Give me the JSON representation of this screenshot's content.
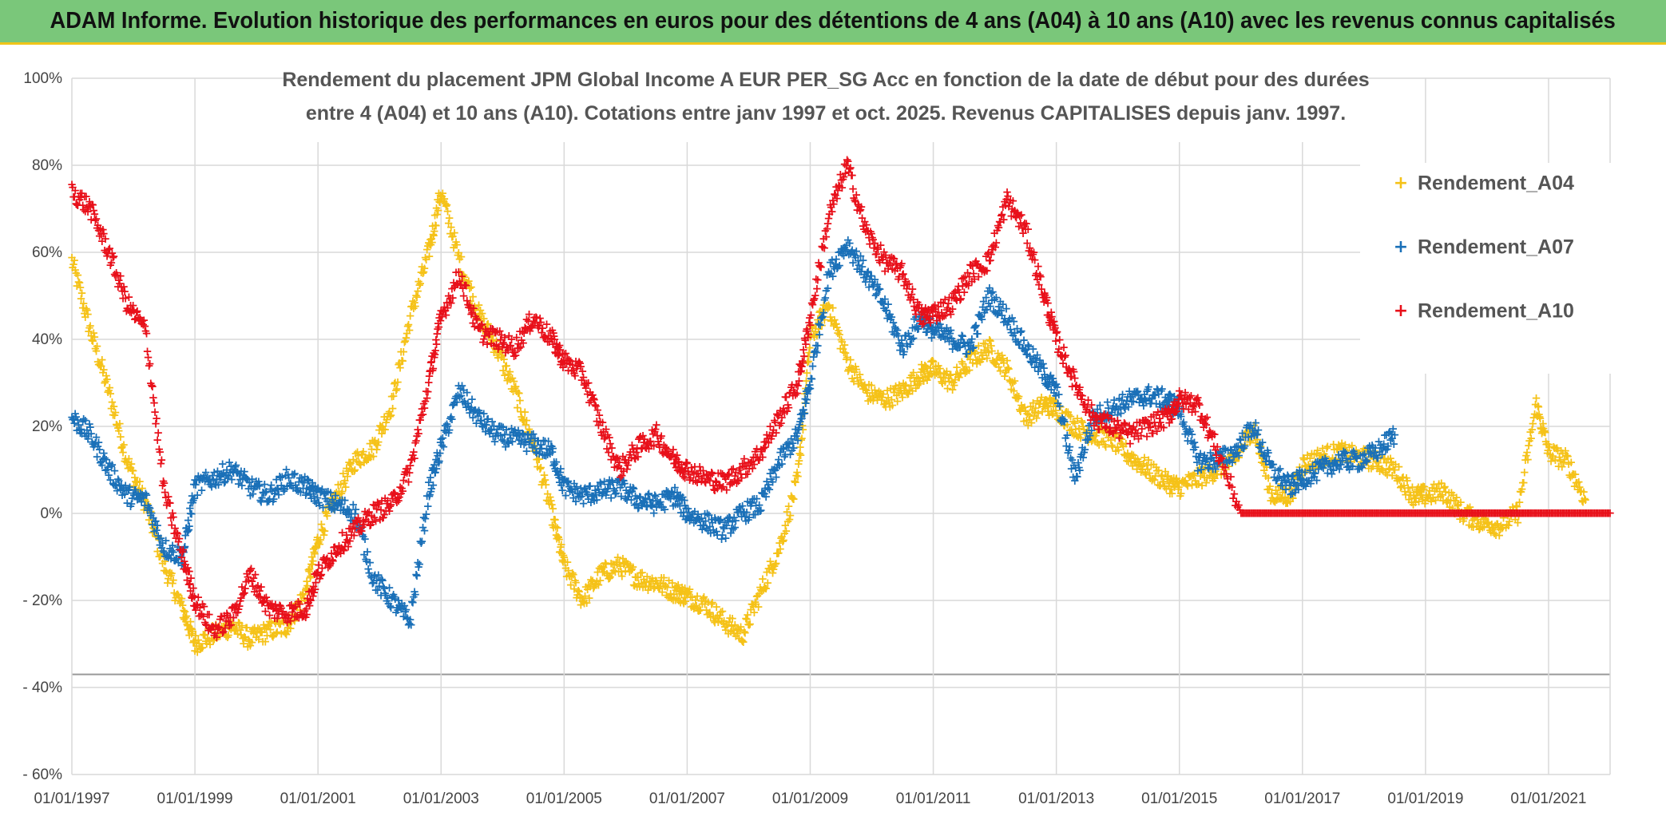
{
  "banner": {
    "title": "ADAM Informe. Evolution historique des performances en euros pour des détentions de 4 ans (A04) à 10 ans (A10) avec les revenus connus capitalisés"
  },
  "chart_data": {
    "type": "scatter",
    "title_line1": "Rendement du placement JPM Global Income A EUR PER_SG Acc en fonction de la date de début pour des durées",
    "title_line2": "entre 4 (A04) et 10 ans (A10). Cotations entre janv 1997 et oct. 2025. Revenus CAPITALISES depuis janv. 1997.",
    "xlabel": "",
    "ylabel": "",
    "xlim": [
      1997.0,
      2022.0
    ],
    "ylim": [
      -60,
      100
    ],
    "x_ticks": [
      1997,
      1999,
      2001,
      2003,
      2005,
      2007,
      2009,
      2011,
      2013,
      2015,
      2017,
      2019,
      2021
    ],
    "x_tick_labels": [
      "01/01/1997",
      "01/01/1999",
      "01/01/2001",
      "01/01/2003",
      "01/01/2005",
      "01/01/2007",
      "01/01/2009",
      "01/01/2011",
      "01/01/2013",
      "01/01/2015",
      "01/01/2017",
      "01/01/2019",
      "01/01/2021"
    ],
    "y_ticks": [
      100,
      80,
      60,
      40,
      20,
      0,
      -20,
      -40,
      -60
    ],
    "y_tick_labels": [
      "100%",
      "80%",
      "60%",
      "40%",
      "20%",
      "0%",
      "- 20%",
      "- 40%",
      "- 60%"
    ],
    "grid": true,
    "legend_position": "top-right",
    "marker": "+",
    "series": [
      {
        "name": "Rendement_A04",
        "color": "#f5c218",
        "x": [
          1997.0,
          1997.3,
          1997.6,
          1997.9,
          1998.2,
          1998.5,
          1998.8,
          1999.0,
          1999.3,
          1999.6,
          1999.9,
          2000.2,
          2000.5,
          2000.8,
          2001.0,
          2001.3,
          2001.6,
          2001.9,
          2002.2,
          2002.5,
          2002.8,
          2003.0,
          2003.3,
          2003.6,
          2003.9,
          2004.2,
          2004.5,
          2004.8,
          2005.0,
          2005.3,
          2005.6,
          2005.9,
          2006.2,
          2006.5,
          2006.8,
          2007.0,
          2007.3,
          2007.6,
          2007.9,
          2008.2,
          2008.5,
          2008.8,
          2009.0,
          2009.3,
          2009.6,
          2009.9,
          2010.2,
          2010.5,
          2010.8,
          2011.0,
          2011.3,
          2011.6,
          2011.9,
          2012.2,
          2012.5,
          2012.8,
          2013.0,
          2013.3,
          2013.6,
          2013.9,
          2014.2,
          2014.5,
          2014.8,
          2015.0,
          2015.3,
          2015.6,
          2015.9,
          2016.2,
          2016.5,
          2016.8,
          2017.0,
          2017.3,
          2017.6,
          2017.9,
          2018.2,
          2018.5,
          2018.8,
          2019.0,
          2019.3,
          2019.6,
          2019.9,
          2020.2,
          2020.5,
          2020.8,
          2021.0,
          2021.3,
          2021.6
        ],
        "y": [
          58,
          42,
          28,
          12,
          2,
          -12,
          -22,
          -30,
          -28,
          -26,
          -29,
          -27,
          -26,
          -18,
          -6,
          4,
          12,
          15,
          25,
          45,
          60,
          74,
          58,
          46,
          38,
          28,
          16,
          0,
          -12,
          -20,
          -14,
          -12,
          -15,
          -16,
          -18,
          -19,
          -21,
          -25,
          -28,
          -18,
          -8,
          8,
          40,
          48,
          35,
          28,
          26,
          28,
          32,
          33,
          30,
          35,
          38,
          33,
          22,
          25,
          24,
          20,
          18,
          17,
          13,
          10,
          7,
          6,
          8,
          10,
          12,
          20,
          4,
          4,
          11,
          13,
          14,
          13,
          12,
          10,
          4,
          4,
          5,
          0,
          -2,
          -3,
          0,
          25,
          14,
          12,
          3
        ]
      },
      {
        "name": "Rendement_A07",
        "color": "#1a70b8",
        "x": [
          1997.0,
          1997.3,
          1997.6,
          1997.9,
          1998.2,
          1998.5,
          1998.8,
          1999.0,
          1999.3,
          1999.6,
          1999.9,
          2000.2,
          2000.5,
          2000.8,
          2001.0,
          2001.3,
          2001.6,
          2001.9,
          2002.2,
          2002.5,
          2002.8,
          2003.0,
          2003.3,
          2003.6,
          2003.9,
          2004.2,
          2004.5,
          2004.8,
          2005.0,
          2005.3,
          2005.6,
          2005.9,
          2006.2,
          2006.5,
          2006.8,
          2007.0,
          2007.3,
          2007.6,
          2007.9,
          2008.2,
          2008.5,
          2008.8,
          2009.0,
          2009.3,
          2009.6,
          2009.9,
          2010.2,
          2010.5,
          2010.8,
          2011.0,
          2011.3,
          2011.6,
          2011.9,
          2012.2,
          2012.5,
          2012.8,
          2013.0,
          2013.3,
          2013.6,
          2013.9,
          2014.2,
          2014.5,
          2014.8,
          2015.0,
          2015.3,
          2015.6,
          2015.9,
          2016.2,
          2016.5,
          2016.8,
          2017.0,
          2017.3,
          2017.6,
          2017.9,
          2018.2,
          2018.5
        ],
        "y": [
          22,
          18,
          10,
          4,
          3,
          -8,
          -10,
          6,
          8,
          10,
          6,
          4,
          8,
          6,
          4,
          2,
          0,
          -15,
          -20,
          -25,
          5,
          15,
          28,
          22,
          18,
          17,
          16,
          14,
          6,
          4,
          5,
          6,
          3,
          2,
          4,
          0,
          -2,
          -4,
          0,
          2,
          12,
          18,
          30,
          55,
          62,
          55,
          48,
          38,
          45,
          42,
          40,
          38,
          50,
          45,
          38,
          32,
          28,
          8,
          22,
          24,
          26,
          27,
          26,
          24,
          12,
          12,
          14,
          20,
          10,
          6,
          8,
          10,
          12,
          12,
          14,
          18
        ]
      },
      {
        "name": "Rendement_A10",
        "color": "#e8101a",
        "x": [
          1997.0,
          1997.3,
          1997.6,
          1997.9,
          1998.2,
          1998.5,
          1998.8,
          1999.0,
          1999.3,
          1999.6,
          1999.9,
          2000.2,
          2000.5,
          2000.8,
          2001.0,
          2001.3,
          2001.6,
          2001.9,
          2002.2,
          2002.5,
          2002.8,
          2003.0,
          2003.3,
          2003.6,
          2003.9,
          2004.2,
          2004.5,
          2004.8,
          2005.0,
          2005.3,
          2005.6,
          2005.9,
          2006.2,
          2006.5,
          2006.8,
          2007.0,
          2007.3,
          2007.6,
          2007.9,
          2008.2,
          2008.5,
          2008.8,
          2009.0,
          2009.3,
          2009.6,
          2009.9,
          2010.2,
          2010.5,
          2010.8,
          2011.0,
          2011.3,
          2011.6,
          2011.9,
          2012.2,
          2012.5,
          2012.8,
          2013.0,
          2013.3,
          2013.6,
          2013.9,
          2014.2,
          2014.5,
          2014.8,
          2015.0,
          2015.3,
          2015.6,
          2016.0,
          2016.5,
          2017.0,
          2017.5,
          2018.0,
          2018.5,
          2019.0,
          2019.5,
          2020.0,
          2020.5,
          2021.0,
          2021.5,
          2022.0
        ],
        "y": [
          74,
          70,
          60,
          48,
          42,
          5,
          -10,
          -20,
          -27,
          -24,
          -14,
          -22,
          -23,
          -22,
          -14,
          -8,
          -4,
          0,
          2,
          10,
          30,
          45,
          55,
          42,
          40,
          38,
          45,
          40,
          35,
          32,
          20,
          10,
          15,
          18,
          12,
          10,
          8,
          7,
          10,
          14,
          22,
          30,
          45,
          68,
          80,
          65,
          58,
          55,
          45,
          46,
          48,
          55,
          58,
          72,
          65,
          50,
          40,
          30,
          22,
          20,
          18,
          20,
          22,
          26,
          25,
          15,
          0,
          0,
          0,
          0,
          0,
          0,
          0,
          0,
          0,
          0,
          0,
          0,
          0
        ]
      }
    ]
  }
}
